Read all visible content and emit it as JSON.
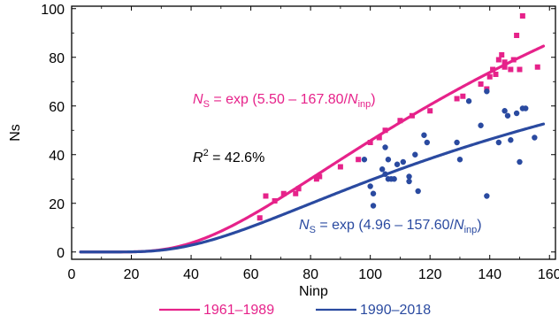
{
  "chart_data": {
    "type": "scatter",
    "xlabel": "Ninp",
    "ylabel": "Ns",
    "xlim": [
      0,
      162
    ],
    "ylim": [
      -3,
      101
    ],
    "x_ticks": [
      0,
      20,
      40,
      60,
      80,
      100,
      120,
      140,
      160
    ],
    "y_ticks": [
      0,
      20,
      40,
      60,
      80,
      100
    ],
    "grid": false,
    "legend_position": "bottom",
    "r2_label": {
      "symbol": "R",
      "sup": "2",
      "text": " = 42.6%"
    },
    "series": [
      {
        "name": "1961–1989",
        "color": "#e6228a",
        "marker": "square",
        "fit": {
          "a": 5.5,
          "b": 167.8,
          "label_var": "N",
          "label_sub": "S",
          "label_eq": " = exp (5.50 – 167.80/",
          "label_var2": "N",
          "label_sub2": "inp",
          "label_close": ")"
        },
        "points": [
          [
            63,
            14
          ],
          [
            65,
            23
          ],
          [
            68,
            21
          ],
          [
            71,
            24
          ],
          [
            75,
            24
          ],
          [
            76,
            26
          ],
          [
            82,
            30
          ],
          [
            83,
            31
          ],
          [
            90,
            35
          ],
          [
            96,
            38
          ],
          [
            100,
            45
          ],
          [
            103,
            47
          ],
          [
            105,
            50
          ],
          [
            110,
            54
          ],
          [
            114,
            56
          ],
          [
            120,
            58
          ],
          [
            129,
            63
          ],
          [
            131,
            64
          ],
          [
            137,
            69
          ],
          [
            139,
            67
          ],
          [
            140,
            72
          ],
          [
            141,
            75
          ],
          [
            142,
            73
          ],
          [
            143,
            79
          ],
          [
            144,
            81
          ],
          [
            145,
            78
          ],
          [
            145,
            76
          ],
          [
            147,
            75
          ],
          [
            148,
            79
          ],
          [
            149,
            89
          ],
          [
            150,
            75
          ],
          [
            151,
            97
          ],
          [
            156,
            76
          ]
        ]
      },
      {
        "name": "1990–2018",
        "color": "#2a4aa0",
        "marker": "circle",
        "fit": {
          "a": 4.96,
          "b": 157.6,
          "label_var": "N",
          "label_sub": "S",
          "label_eq": " = exp (4.96 – 157.60/",
          "label_var2": "N",
          "label_sub2": "inp",
          "label_close": ")"
        },
        "points": [
          [
            98,
            38
          ],
          [
            100,
            27
          ],
          [
            101,
            24
          ],
          [
            101,
            19
          ],
          [
            104,
            34
          ],
          [
            105,
            43
          ],
          [
            105,
            32
          ],
          [
            106,
            30
          ],
          [
            106,
            38
          ],
          [
            107,
            30
          ],
          [
            108,
            30
          ],
          [
            109,
            36
          ],
          [
            111,
            37
          ],
          [
            113,
            31
          ],
          [
            113,
            29
          ],
          [
            115,
            40
          ],
          [
            116,
            25
          ],
          [
            118,
            48
          ],
          [
            119,
            45
          ],
          [
            129,
            45
          ],
          [
            130,
            38
          ],
          [
            133,
            62
          ],
          [
            137,
            52
          ],
          [
            139,
            23
          ],
          [
            139,
            66
          ],
          [
            143,
            45
          ],
          [
            145,
            58
          ],
          [
            146,
            56
          ],
          [
            147,
            46
          ],
          [
            149,
            57
          ],
          [
            150,
            37
          ],
          [
            151,
            59
          ],
          [
            152,
            59
          ],
          [
            155,
            47
          ]
        ]
      }
    ]
  }
}
